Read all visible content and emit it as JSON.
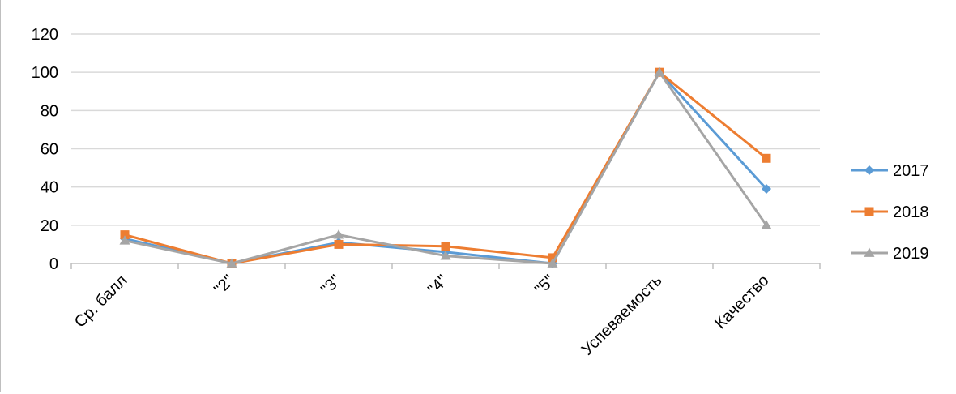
{
  "chart_data": {
    "type": "line",
    "title": "",
    "xlabel": "",
    "ylabel": "",
    "categories": [
      "Ср. балл",
      "\"2\"",
      "\"3\"",
      "\"4\"",
      "\"5\"",
      "Успеваемость",
      "Качество"
    ],
    "ylim": [
      0,
      120
    ],
    "yticks": [
      "0",
      "20",
      "40",
      "60",
      "80",
      "100",
      "120"
    ],
    "grid": true,
    "legend_position": "right",
    "series": [
      {
        "name": "2017",
        "color": "#5b9bd5",
        "marker": "diamond",
        "values": [
          13,
          0,
          11,
          6,
          0,
          100,
          39
        ]
      },
      {
        "name": "2018",
        "color": "#ed7d31",
        "marker": "square",
        "values": [
          15,
          0,
          10,
          9,
          3,
          100,
          55
        ]
      },
      {
        "name": "2019",
        "color": "#a5a5a5",
        "marker": "triangle",
        "values": [
          12,
          0,
          15,
          4,
          0,
          100,
          20
        ]
      }
    ]
  }
}
